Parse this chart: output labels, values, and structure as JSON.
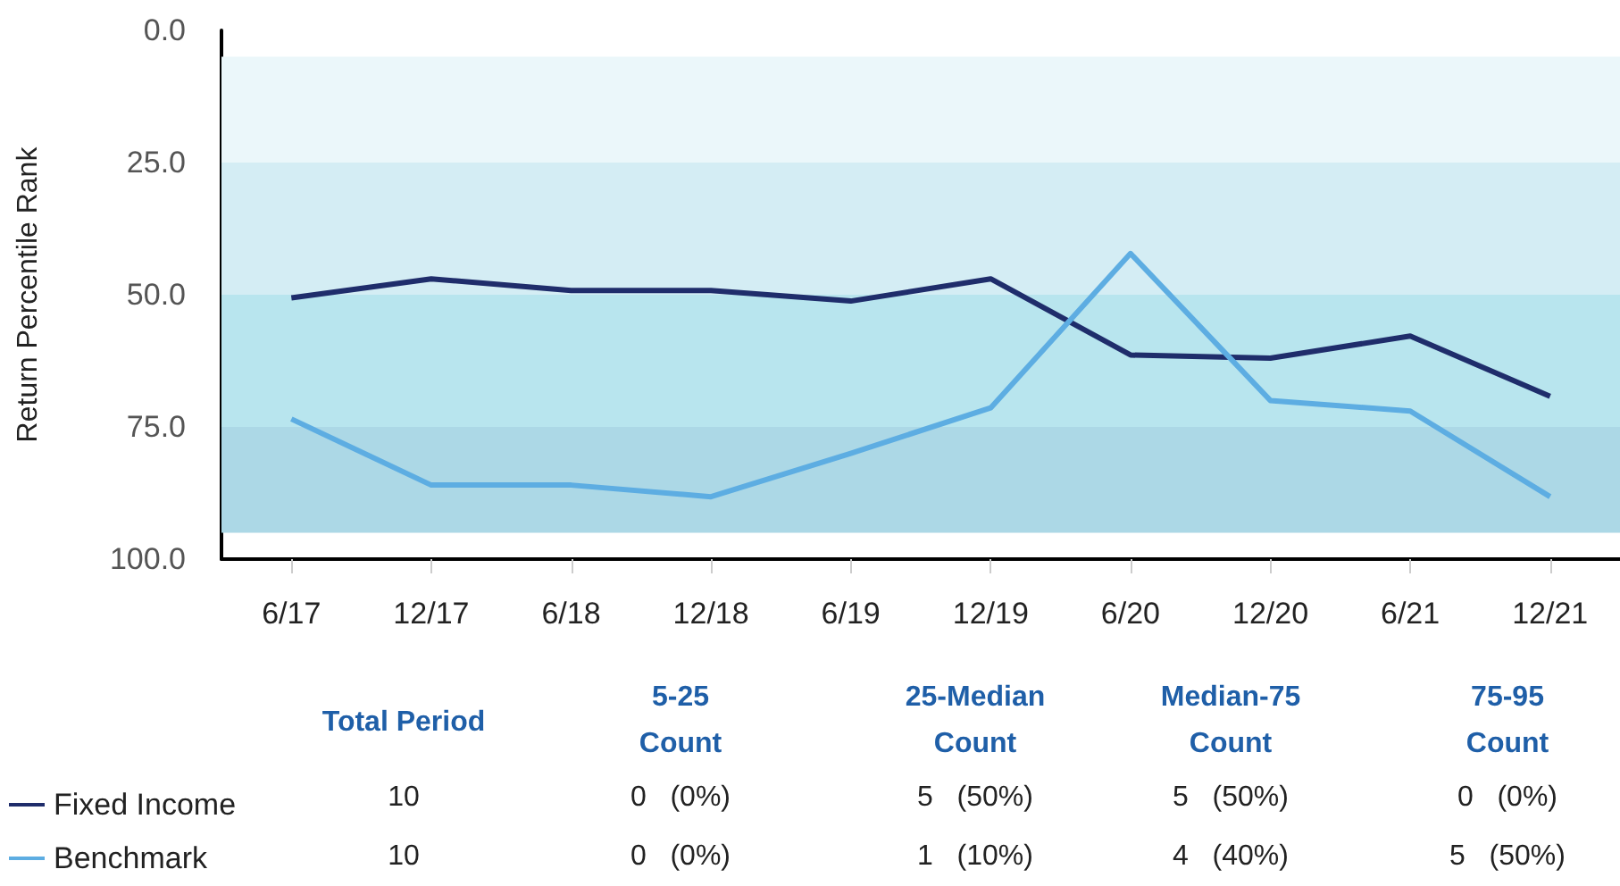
{
  "chart_data": {
    "type": "line",
    "ylabel": "Return Percentile Rank",
    "categories": [
      "6/17",
      "12/17",
      "6/18",
      "12/18",
      "6/19",
      "12/19",
      "6/20",
      "12/20",
      "6/21",
      "12/21"
    ],
    "series": [
      {
        "name": "Fixed Income",
        "color": "#1f2d6b",
        "values": [
          50.6,
          47,
          49.2,
          49.2,
          51.2,
          47,
          61.4,
          62,
          57.8,
          69.2
        ]
      },
      {
        "name": "Benchmark",
        "color": "#5dade2",
        "values": [
          73.5,
          86,
          86,
          88.2,
          80,
          71.4,
          42.2,
          70,
          72,
          88.2
        ]
      }
    ],
    "ylim": [
      100,
      0
    ],
    "yticks": [
      {
        "value": 0,
        "label": "0.0"
      },
      {
        "value": 25,
        "label": "25.0"
      },
      {
        "value": 50,
        "label": "50.0"
      },
      {
        "value": 75,
        "label": "75.0"
      },
      {
        "value": 100,
        "label": "100.0"
      }
    ],
    "bands": [
      {
        "axis": "y",
        "from": 5,
        "to": 25,
        "color": "#ebf7fa"
      },
      {
        "axis": "y",
        "from": 25,
        "to": 50,
        "color": "#d4edf4"
      },
      {
        "axis": "y",
        "from": 50,
        "to": 75,
        "color": "#b8e5ee"
      },
      {
        "axis": "y",
        "from": 75,
        "to": 95,
        "color": "#acd8e6"
      }
    ],
    "annotations": [
      "Total Period",
      "5-25\nCount",
      "25-Median\nCount",
      "Median-75\nCount",
      "75-95\nCount",
      "10",
      "0   (0%)",
      "5   (50%)",
      "5   (50%)",
      "0   (0%)",
      "10",
      "0   (0%)",
      "1   (10%)",
      "4   (40%)",
      "5   (50%)"
    ],
    "grid": false,
    "legend": "bottom left",
    "marker": "none",
    "line_style": "solid"
  }
}
